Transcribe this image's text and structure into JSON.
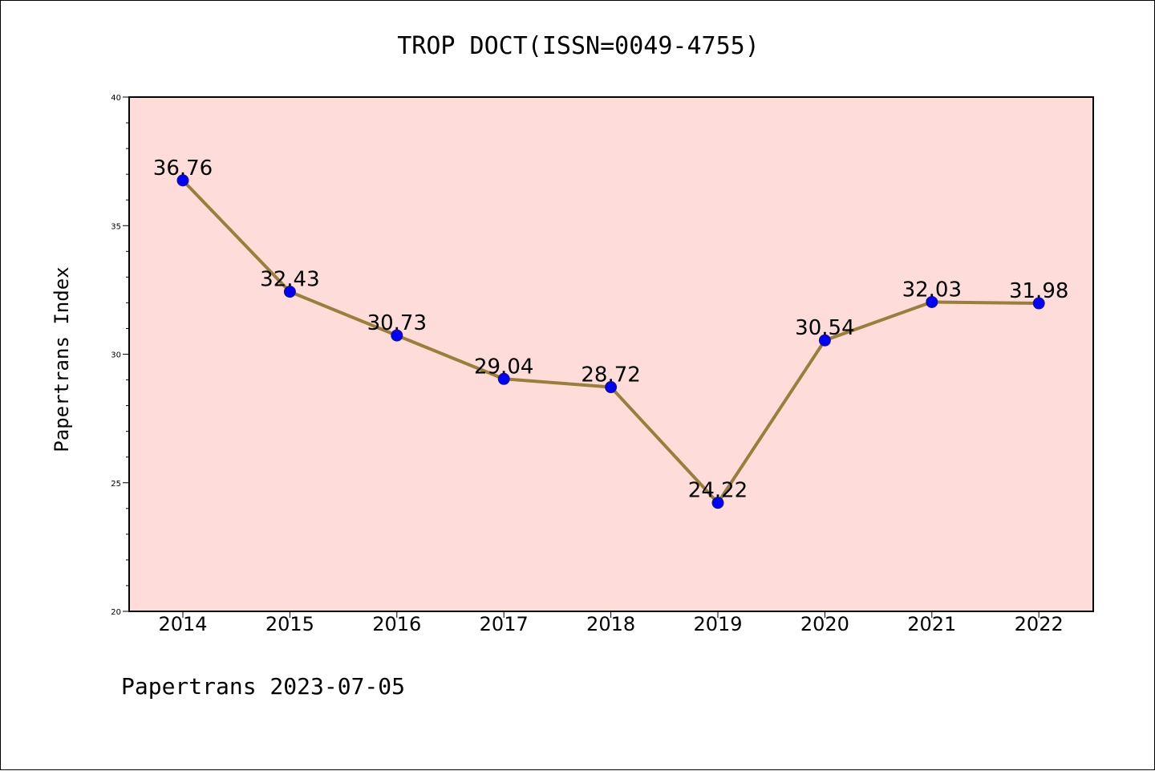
{
  "chart_data": {
    "type": "line",
    "title": "TROP DOCT(ISSN=0049-4755)",
    "xlabel": "",
    "ylabel": "Papertrans Index",
    "footer": "Papertrans 2023-07-05",
    "categories": [
      "2014",
      "2015",
      "2016",
      "2017",
      "2018",
      "2019",
      "2020",
      "2021",
      "2022"
    ],
    "series": [
      {
        "values": [
          36.76,
          32.43,
          30.73,
          29.04,
          28.72,
          24.22,
          30.54,
          32.03,
          31.98
        ],
        "labels": [
          "36.76",
          "32.43",
          "30.73",
          "29.04",
          "28.72",
          "24.22",
          "30.54",
          "32.03",
          "31.98"
        ]
      }
    ],
    "ylim": [
      20,
      40
    ],
    "yticks": [
      "20",
      "25",
      "30",
      "35",
      "40"
    ],
    "grid": false,
    "colors": {
      "plot_background": "#fddcd9",
      "line": "#9a7f3a",
      "marker": "#0000ff"
    }
  }
}
